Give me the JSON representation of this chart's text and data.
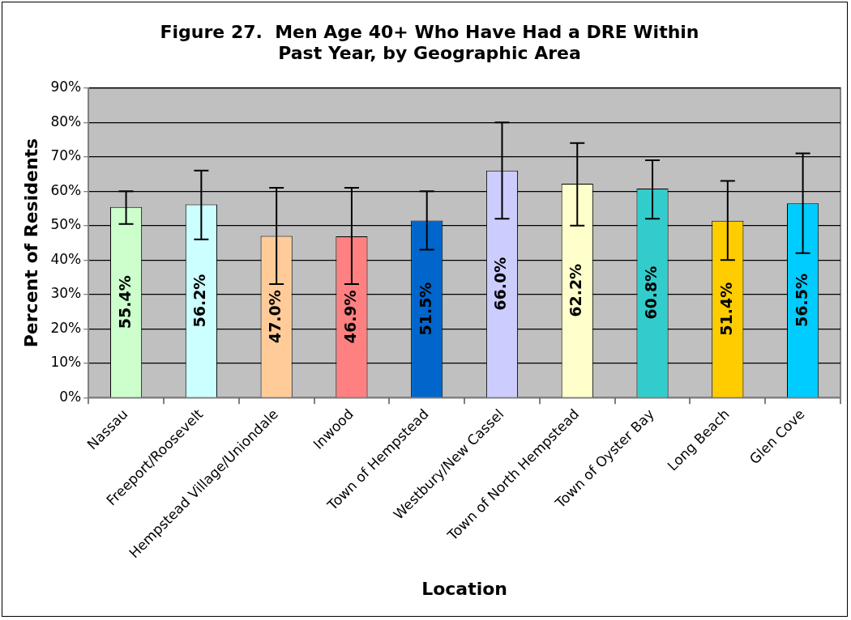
{
  "chart_data": {
    "type": "bar",
    "title": "Figure 27.  Men Age 40+ Who Have Had a DRE Within Past Year, by Geographic Area",
    "xlabel": "Location",
    "ylabel": "Percent of Residents",
    "categories": [
      "Nassau",
      "Freeport/Roosevelt",
      "Hempstead Village/Uniondale",
      "Inwood",
      "Town of Hempstead",
      "Westbury/New Cassel",
      "Town of North Hempstead",
      "Town of Oyster Bay",
      "Long Beach",
      "Glen Cove"
    ],
    "values": [
      55.4,
      56.2,
      47.0,
      46.9,
      51.5,
      66.0,
      62.2,
      60.8,
      51.4,
      56.5
    ],
    "colors": [
      "#ccffcc",
      "#ccffff",
      "#ffcc99",
      "#ff8080",
      "#0066cc",
      "#ccccff",
      "#ffffcc",
      "#33cccc",
      "#ffcc00",
      "#00ccff"
    ],
    "errors": [
      [
        50.5,
        60
      ],
      [
        46,
        66
      ],
      [
        33,
        61
      ],
      [
        33,
        61
      ],
      [
        43,
        60
      ],
      [
        52,
        80
      ],
      [
        50,
        74
      ],
      [
        52,
        69
      ],
      [
        40,
        63
      ],
      [
        42,
        71
      ]
    ],
    "value_labels": [
      "55.4%",
      "56.2%",
      "47.0%",
      "46.9%",
      "51.5%",
      "66.0%",
      "62.2%",
      "60.8%",
      "51.4%",
      "56.5%"
    ],
    "ylim": [
      0,
      90
    ],
    "yticks": [
      {
        "value": 0,
        "label": "0%"
      },
      {
        "value": 10,
        "label": "10%"
      },
      {
        "value": 20,
        "label": "20%"
      },
      {
        "value": 30,
        "label": "30%"
      },
      {
        "value": 40,
        "label": "40%"
      },
      {
        "value": 50,
        "label": "50%"
      },
      {
        "value": 60,
        "label": "60%"
      },
      {
        "value": 70,
        "label": "70%"
      },
      {
        "value": 80,
        "label": "80%"
      },
      {
        "value": 90,
        "label": "90%"
      }
    ],
    "grid": "y",
    "legend": false
  }
}
